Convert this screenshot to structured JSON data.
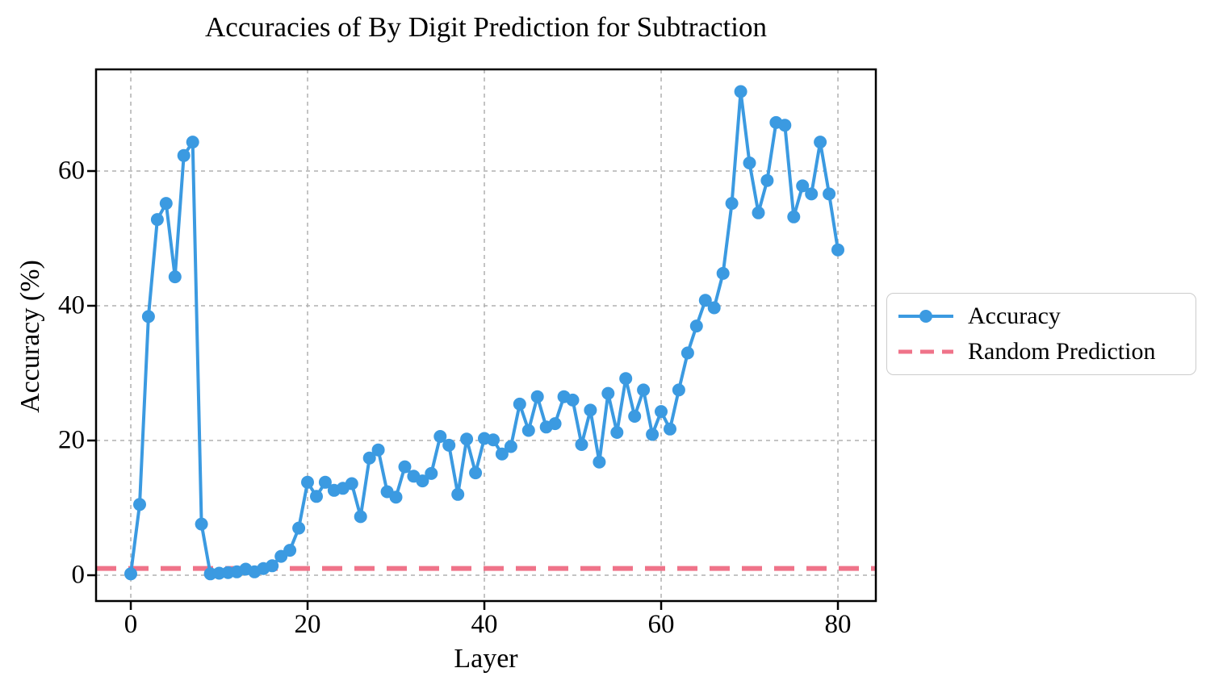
{
  "title": "Accuracies of By Digit Prediction for Subtraction",
  "legend": {
    "accuracy_label": "Accuracy",
    "random_label": "Random Prediction"
  },
  "colors": {
    "line": "#3b9ae1",
    "random_line": "#ef7389",
    "grid": "#b0b0b0",
    "spine": "#000000",
    "legend_border": "#cccccc"
  },
  "chart_data": {
    "type": "line",
    "title": "Accuracies of By Digit Prediction for Subtraction",
    "xlabel": "Layer",
    "ylabel": "Accuracy (%)",
    "xlim": [
      -3.93,
      84.29
    ],
    "ylim": [
      -3.83,
      75.09
    ],
    "xticks": [
      0,
      20,
      40,
      60,
      80
    ],
    "yticks": [
      0,
      20,
      40,
      60
    ],
    "grid": true,
    "legend_position": "right-outside",
    "series": [
      {
        "name": "Accuracy",
        "style": "solid-with-markers",
        "x": [
          0,
          1,
          2,
          3,
          4,
          5,
          6,
          7,
          8,
          9,
          10,
          11,
          12,
          13,
          14,
          15,
          16,
          17,
          18,
          19,
          20,
          21,
          22,
          23,
          24,
          25,
          26,
          27,
          28,
          29,
          30,
          31,
          32,
          33,
          34,
          35,
          36,
          37,
          38,
          39,
          40,
          41,
          42,
          43,
          44,
          45,
          46,
          47,
          48,
          49,
          50,
          51,
          52,
          53,
          54,
          55,
          56,
          57,
          58,
          59,
          60,
          61,
          62,
          63,
          64,
          65,
          66,
          67,
          68,
          69,
          70,
          71,
          72,
          73,
          74,
          75,
          76,
          77,
          78,
          79,
          80
        ],
        "y": [
          0.2,
          10.5,
          38.4,
          52.8,
          55.2,
          44.3,
          62.3,
          64.3,
          7.6,
          0.2,
          0.3,
          0.4,
          0.5,
          0.9,
          0.5,
          1.0,
          1.4,
          2.8,
          3.7,
          7.0,
          13.8,
          11.7,
          13.8,
          12.6,
          12.9,
          13.6,
          8.7,
          17.4,
          18.6,
          12.4,
          11.6,
          16.1,
          14.7,
          14.0,
          15.1,
          20.6,
          19.3,
          12.0,
          20.2,
          15.2,
          20.3,
          20.1,
          18.0,
          19.1,
          25.4,
          21.5,
          26.5,
          22.0,
          22.5,
          26.5,
          26.0,
          19.4,
          24.5,
          16.8,
          27.0,
          21.2,
          29.2,
          23.6,
          27.5,
          20.9,
          24.3,
          21.7,
          27.5,
          33.0,
          37.0,
          40.8,
          39.7,
          44.8,
          55.2,
          71.8,
          61.2,
          53.8,
          58.6,
          67.2,
          66.8,
          53.2,
          57.8,
          56.6,
          64.3,
          56.6,
          48.3
        ]
      },
      {
        "name": "Random Prediction",
        "style": "dashed-horizontal",
        "y_value": 1.0
      }
    ]
  }
}
